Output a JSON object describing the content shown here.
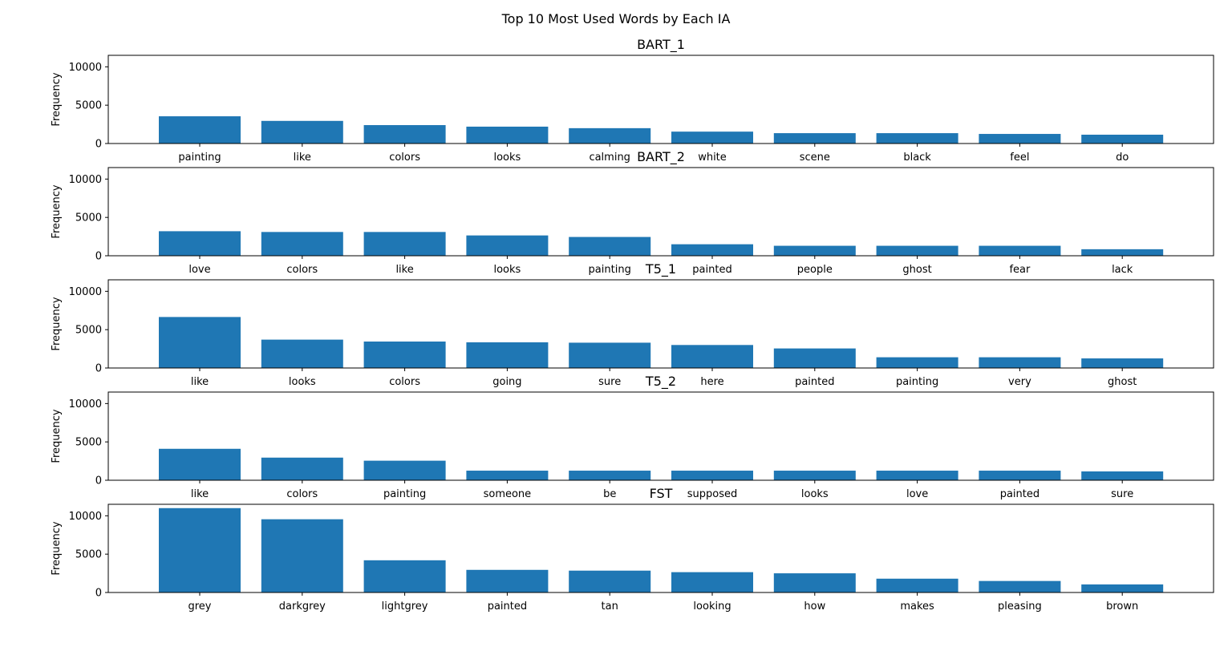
{
  "chart_data": {
    "type": "bar",
    "title": "Top 10 Most Used Words by Each IA",
    "bar_color": "#1f77b4",
    "ylabel": "Frequency",
    "ylim": [
      0,
      11500
    ],
    "yticks": [
      0,
      5000,
      10000
    ],
    "grid": false,
    "legend": "none",
    "subplots": [
      {
        "title": "BART_1",
        "categories": [
          "painting",
          "like",
          "colors",
          "looks",
          "calming",
          "white",
          "scene",
          "black",
          "feel",
          "do"
        ],
        "values": [
          3550,
          2950,
          2400,
          2200,
          2000,
          1550,
          1350,
          1350,
          1250,
          1150
        ]
      },
      {
        "title": "BART_2",
        "categories": [
          "love",
          "colors",
          "like",
          "looks",
          "painting",
          "painted",
          "people",
          "ghost",
          "fear",
          "lack"
        ],
        "values": [
          3200,
          3100,
          3100,
          2650,
          2450,
          1500,
          1300,
          1300,
          1300,
          850
        ]
      },
      {
        "title": "T5_1",
        "categories": [
          "like",
          "looks",
          "colors",
          "going",
          "sure",
          "here",
          "painted",
          "painting",
          "very",
          "ghost"
        ],
        "values": [
          6650,
          3700,
          3450,
          3350,
          3300,
          3000,
          2550,
          1400,
          1400,
          1250
        ]
      },
      {
        "title": "T5_2",
        "categories": [
          "like",
          "colors",
          "painting",
          "someone",
          "be",
          "supposed",
          "looks",
          "love",
          "painted",
          "sure"
        ],
        "values": [
          4100,
          2950,
          2550,
          1250,
          1250,
          1250,
          1250,
          1250,
          1250,
          1150
        ]
      },
      {
        "title": "FST",
        "categories": [
          "grey",
          "darkgrey",
          "lightgrey",
          "painted",
          "tan",
          "looking",
          "how",
          "makes",
          "pleasing",
          "brown"
        ],
        "values": [
          11000,
          9550,
          4200,
          2950,
          2850,
          2650,
          2500,
          1800,
          1500,
          1050
        ]
      }
    ]
  }
}
